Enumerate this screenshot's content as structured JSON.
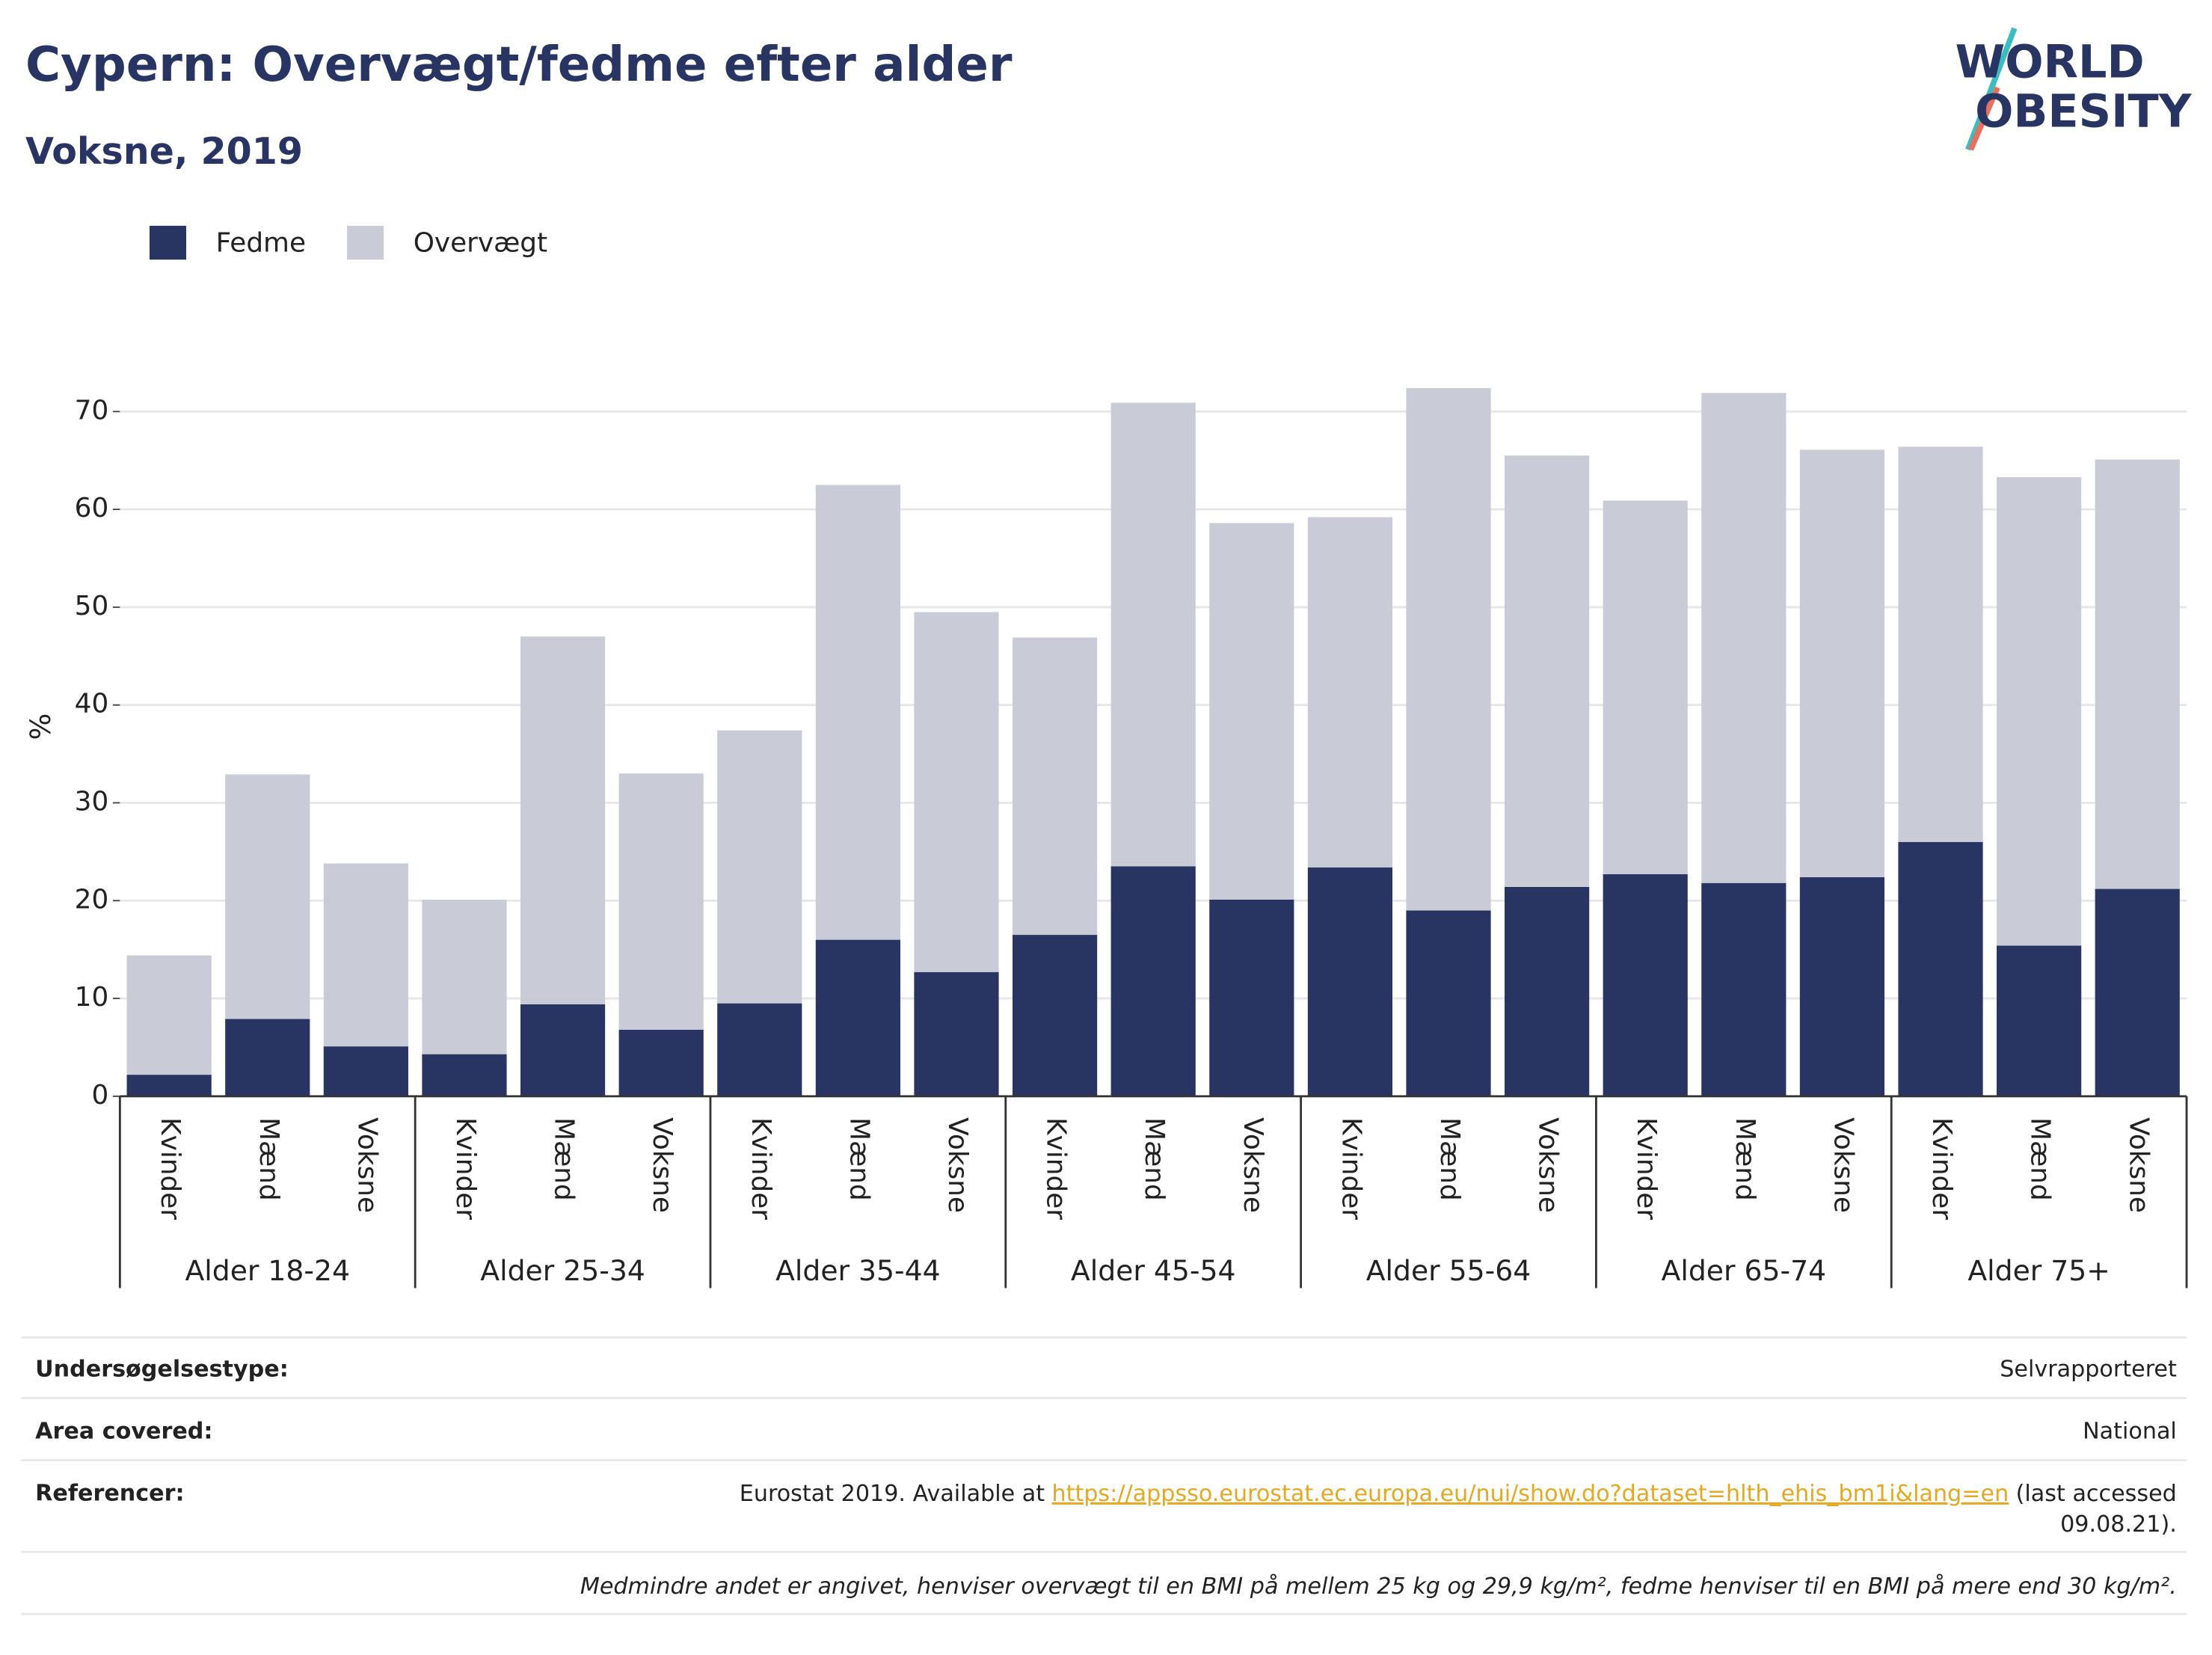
{
  "chart_data": {
    "type": "stacked-bar",
    "title": "Cypern: Overvægt/fedme efter alder",
    "subtitle": "Voksne, 2019",
    "logo": [
      "WORLD",
      "OBESITY"
    ],
    "y_label": "%",
    "categories": [
      "Kvinder",
      "Mænd",
      "Voksne",
      "Kvinder",
      "Mænd",
      "Voksne",
      "Kvinder",
      "Mænd",
      "Voksne",
      "Kvinder",
      "Mænd",
      "Voksne",
      "Kvinder",
      "Mænd",
      "Voksne",
      "Kvinder",
      "Mænd",
      "Voksne",
      "Kvinder",
      "Mænd",
      "Voksne"
    ],
    "groups": [
      "Alder 18-24",
      "Alder 25-34",
      "Alder 35-44",
      "Alder 45-54",
      "Alder 55-64",
      "Alder 65-74",
      "Alder 75+"
    ],
    "series": [
      {
        "name": "Fedme",
        "color": "#283462",
        "values": [
          2.2,
          7.9,
          5.1,
          4.3,
          9.4,
          6.8,
          9.5,
          16.0,
          12.7,
          16.5,
          23.5,
          20.1,
          23.4,
          19.0,
          21.4,
          22.7,
          21.8,
          22.4,
          26.0,
          15.4,
          21.2
        ]
      },
      {
        "name": "Overvægt",
        "color": "#c9cbd7",
        "values": [
          12.2,
          25.0,
          18.7,
          15.8,
          37.6,
          26.2,
          27.9,
          46.5,
          36.8,
          30.4,
          47.4,
          38.5,
          35.8,
          53.4,
          44.1,
          38.2,
          50.1,
          43.7,
          40.4,
          47.9,
          43.9
        ]
      }
    ],
    "ylim": [
      0,
      75
    ],
    "yticks": [
      0,
      10,
      20,
      30,
      40,
      50,
      60,
      70
    ],
    "grid": true,
    "legend": "top-left"
  },
  "info": {
    "rows": [
      {
        "label": "Undersøgelsestype:",
        "value": "Selvrapporteret"
      },
      {
        "label": "Area covered:",
        "value": "National"
      }
    ],
    "reference": {
      "label": "Referencer:",
      "text": "Eurostat 2019. Available at",
      "link": "https://appsso.eurostat.ec.europa.eu/nui/show.do?dataset=hlth_ehis_bm1i&lang=en",
      "after": [
        "(last accessed",
        "09.08.21)."
      ]
    },
    "note": "Medmindre andet er angivet, henviser overvægt til en BMI på mellem 25 kg og 29,9 kg/m², fedme henviser til en BMI på mere end 30 kg/m²."
  }
}
